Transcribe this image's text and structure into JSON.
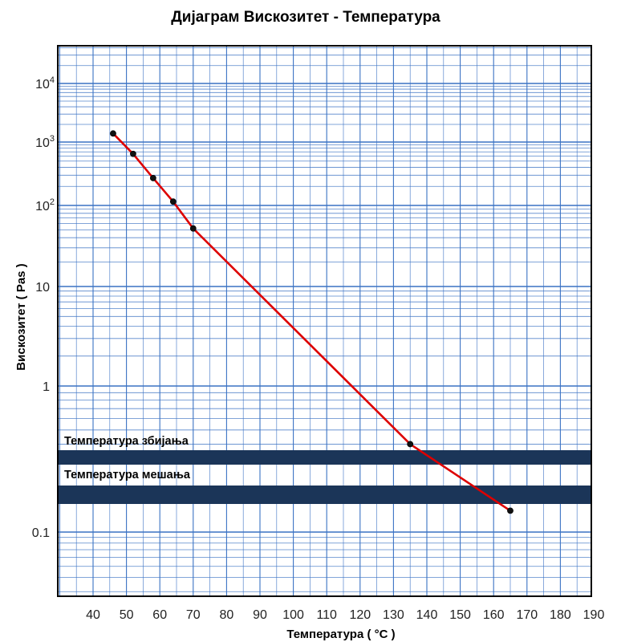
{
  "chart_data": {
    "type": "line",
    "title": "Дијаграм  Вискозитет - Температура",
    "xlabel": "Температура  ( °C )",
    "ylabel": "Вискозитет ( Pas )",
    "x_ticks": [
      "40",
      "50",
      "60",
      "70",
      "80",
      "90",
      "100",
      "110",
      "120",
      "130",
      "140",
      "150",
      "160",
      "170",
      "180",
      "190"
    ],
    "y_ticks": [
      {
        "base": "0.1",
        "exp": ""
      },
      {
        "base": "1",
        "exp": ""
      },
      {
        "base": "10",
        "exp": ""
      },
      {
        "base": "10",
        "exp": "2"
      },
      {
        "base": "10",
        "exp": "3"
      },
      {
        "base": "10",
        "exp": "4"
      }
    ],
    "x_scale": "linear",
    "y_scale": "log",
    "grid": true,
    "series": [
      {
        "color": "#dd0000",
        "marker_color": "#111111",
        "points": [
          {
            "x": 46,
            "y": 1400
          },
          {
            "x": 52,
            "y": 650
          },
          {
            "x": 58,
            "y": 270
          },
          {
            "x": 64,
            "y": 115
          },
          {
            "x": 70,
            "y": 52
          },
          {
            "x": 135,
            "y": 0.4
          },
          {
            "x": 165,
            "y": 0.14
          }
        ]
      }
    ],
    "bands": [
      {
        "label": "Температура збијања",
        "color": "#1b3558"
      },
      {
        "label": "Температура мешања",
        "color": "#1b3558"
      }
    ],
    "grid_color": "#3a72c4"
  }
}
